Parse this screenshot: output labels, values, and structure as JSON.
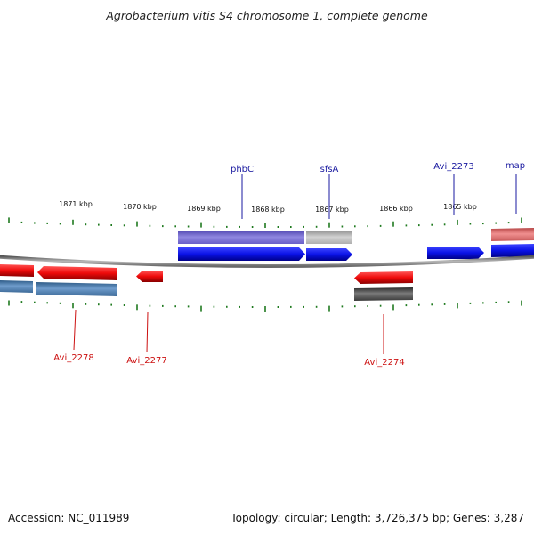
{
  "title": "Agrobacterium vitis S4 chromosome 1, complete genome",
  "footer": {
    "accession": "Accession: NC_011989",
    "summary": "Topology: circular; Length: 3,726,375 bp; Genes: 3,287"
  },
  "scale_labels": [
    "1871 kbp",
    "1870 kbp",
    "1869 kbp",
    "1868 kbp",
    "1867 kbp",
    "1866 kbp",
    "1865 kbp"
  ],
  "gene_labels": {
    "top": [
      "phbC",
      "sfsA",
      "Avi_2273",
      "map"
    ],
    "bottom": [
      "Avi_2278",
      "Avi_2277",
      "Avi_2274"
    ]
  },
  "colors": {
    "top_label": "#1a1aa0",
    "bottom_label": "#cc1111",
    "cds_forward": "#0a12e6",
    "cds_reverse": "#ee0a0a",
    "tick": "#1f7a1f",
    "backbone": "#8c8c8c"
  }
}
